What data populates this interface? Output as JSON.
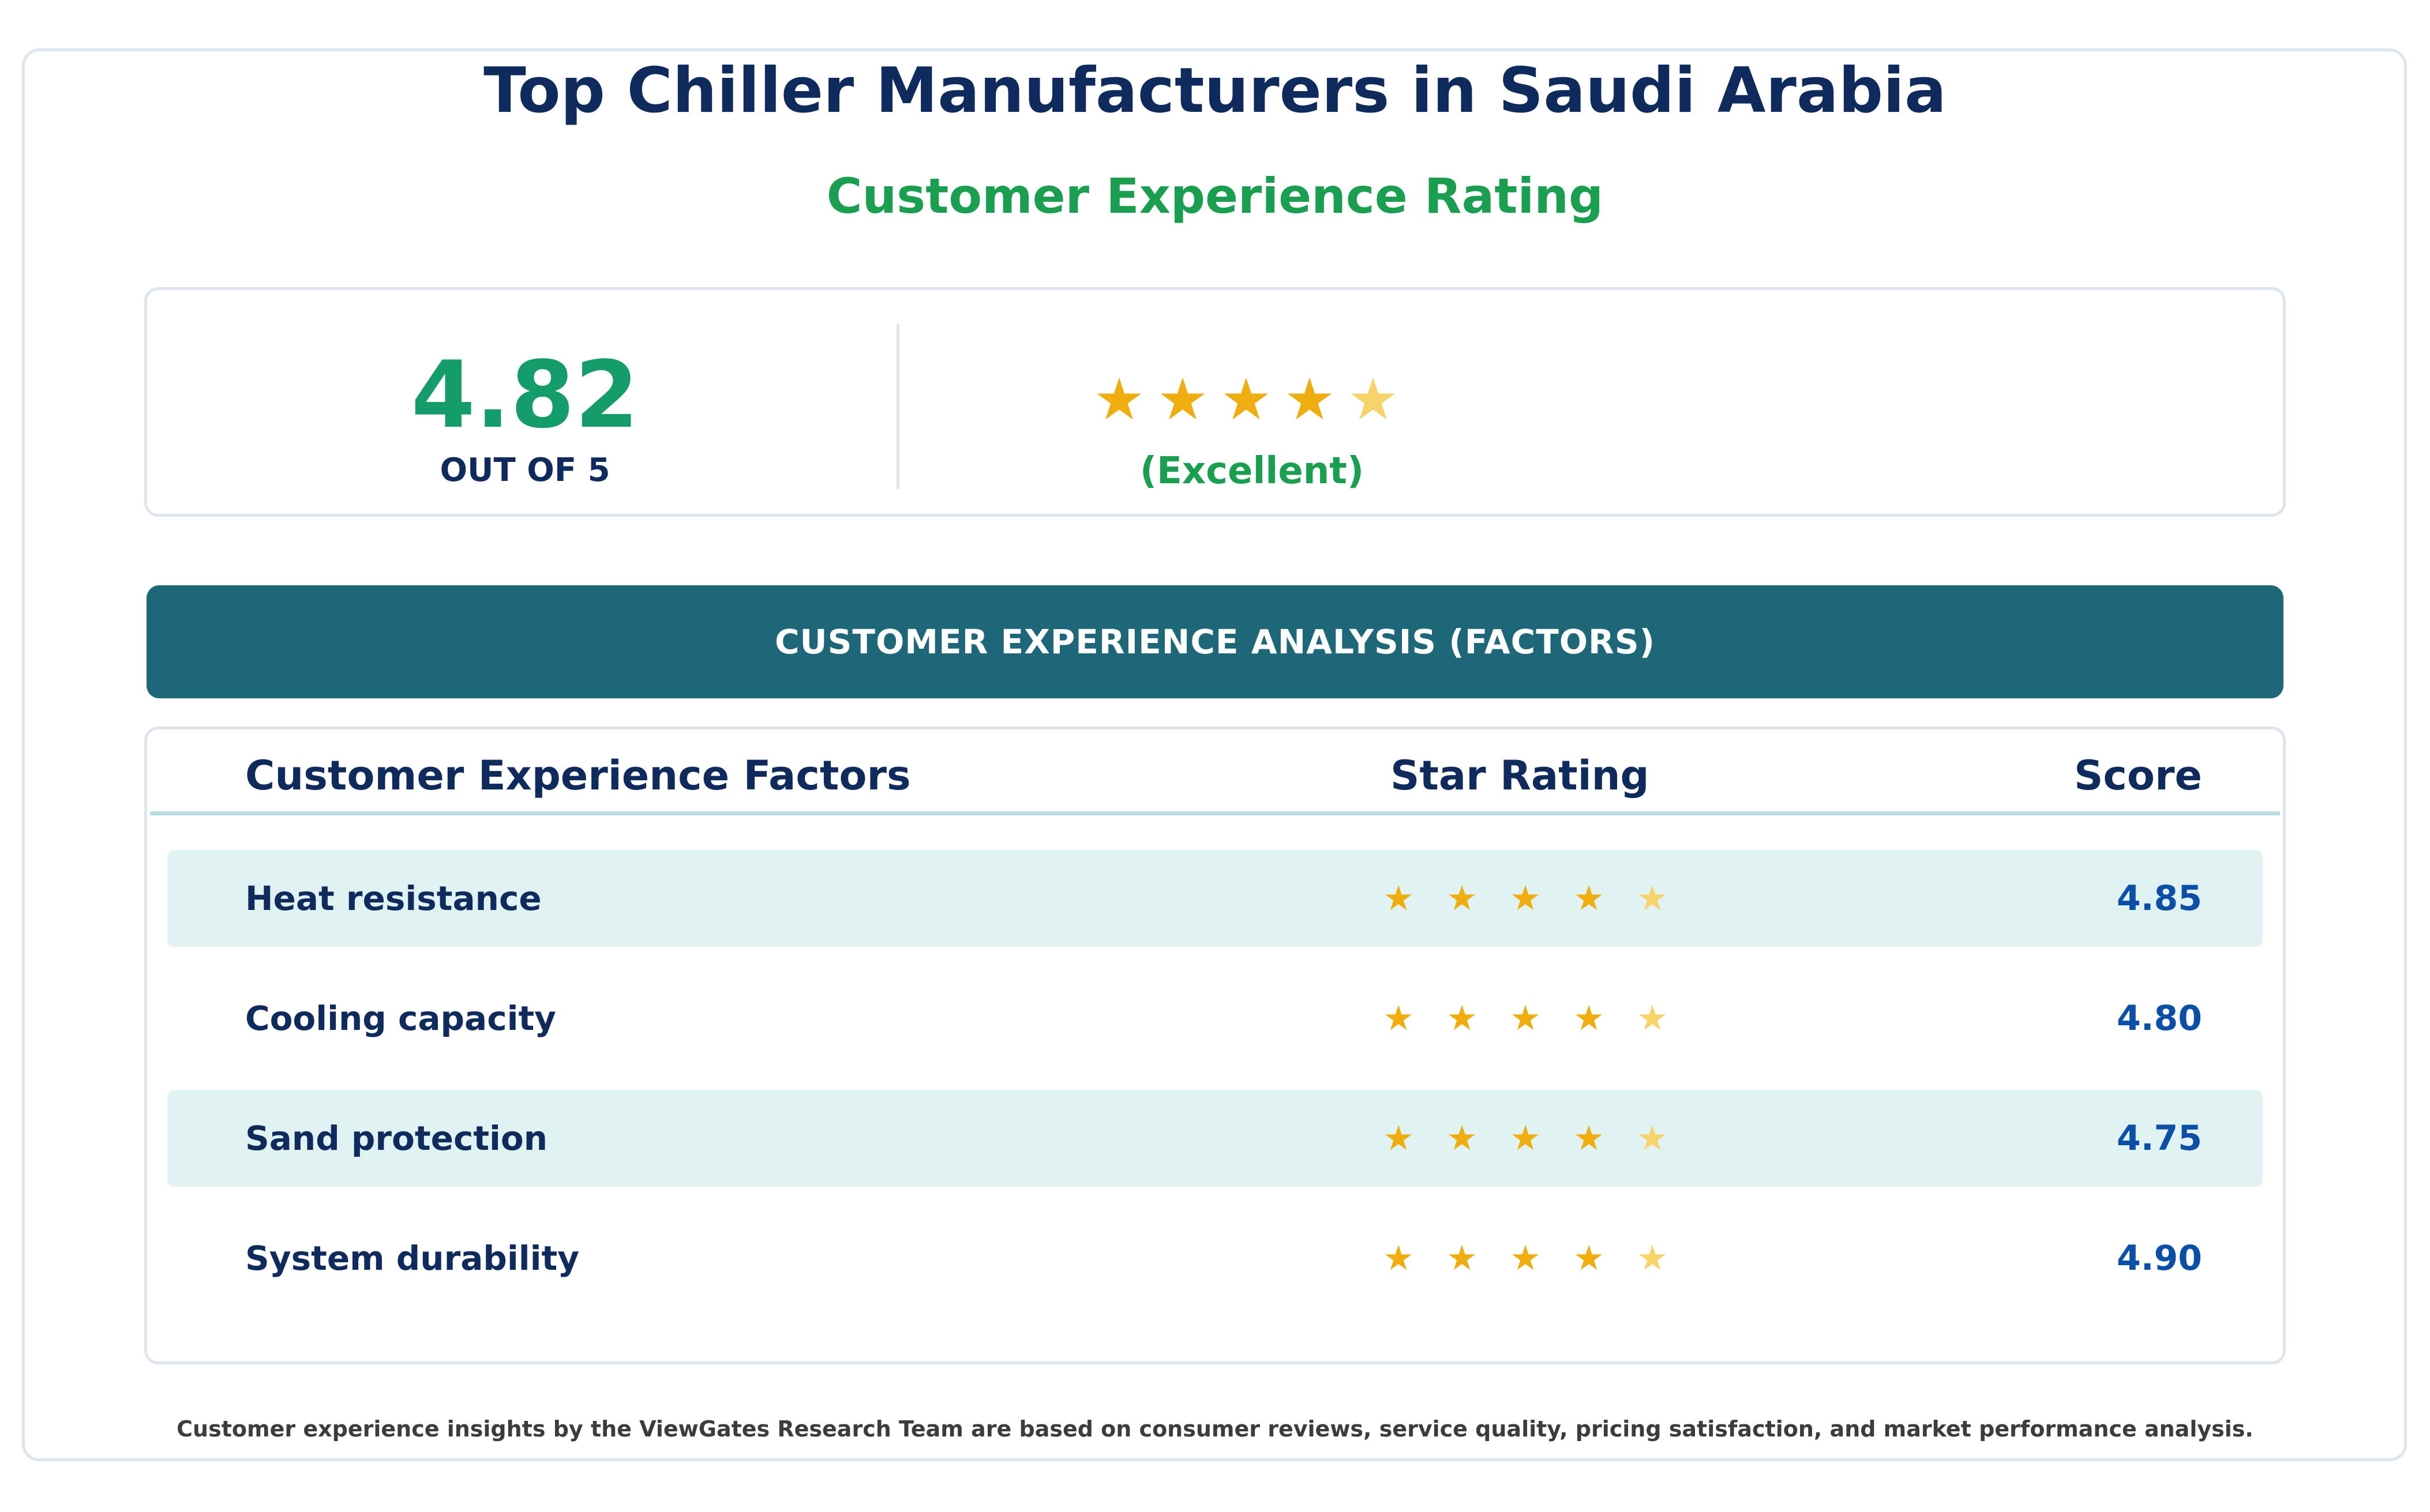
{
  "header": {
    "title": "Top Chiller Manufacturers in Saudi Arabia",
    "subtitle": "Customer Experience Rating"
  },
  "summary": {
    "score": "4.82",
    "out_of_label": "OUT OF 5",
    "star_glyph": "★",
    "stars_full": 4,
    "stars_half": 1,
    "verdict": "(Excellent)"
  },
  "banner": {
    "label": "CUSTOMER EXPERIENCE ANALYSIS (FACTORS)"
  },
  "table": {
    "headers": {
      "factor": "Customer Experience Factors",
      "stars": "Star Rating",
      "score": "Score"
    }
  },
  "colors": {
    "title": "#0f2a5c",
    "accent_green": "#1a9e4f",
    "score_green": "#149d6b",
    "banner": "#1e6778",
    "star_full": "#f0ad0f",
    "star_partial": "#f8d36a",
    "score_blue": "#0b4fa8",
    "row_shade": "#e1f2f2"
  },
  "chart_data": {
    "type": "table",
    "columns": [
      "Customer Experience Factors",
      "Star Rating",
      "Score"
    ],
    "rows": [
      {
        "factor": "Heat resistance",
        "score": "4.85",
        "value": 4.85
      },
      {
        "factor": "Cooling capacity",
        "score": "4.80",
        "value": 4.8
      },
      {
        "factor": "Sand protection",
        "score": "4.75",
        "value": 4.75
      },
      {
        "factor": "System durability",
        "score": "4.90",
        "value": 4.9
      }
    ],
    "max_score": 5
  },
  "footnote": "Customer experience insights by the ViewGates Research Team are based on consumer reviews, service quality, pricing satisfaction, and market performance analysis."
}
